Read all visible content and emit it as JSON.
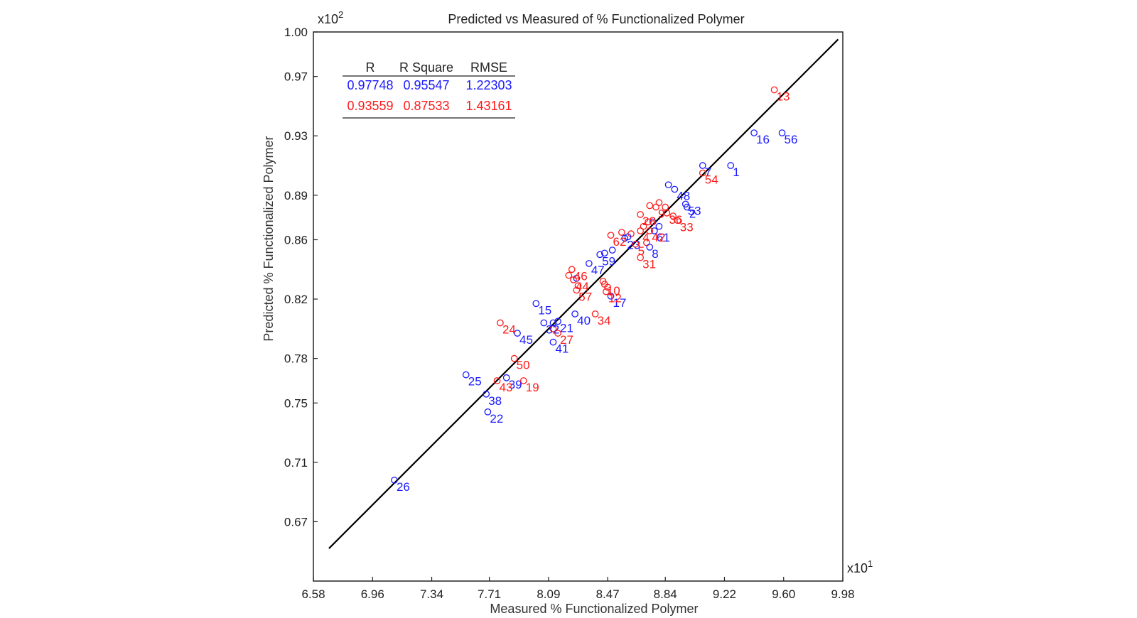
{
  "chart_data": {
    "type": "scatter",
    "title": "Predicted vs Measured of % Functionalized Polymer",
    "xlabel": "Measured % Functionalized Polymer",
    "ylabel": "Predicted % Functionalized Polymer",
    "x_multiplier": "x10",
    "x_multiplier_exp": "1",
    "y_multiplier": "x10",
    "y_multiplier_exp": "2",
    "xlim": [
      6.58,
      9.98
    ],
    "ylim": [
      0.63,
      1.0
    ],
    "x_ticks": [
      "6.58",
      "6.96",
      "7.34",
      "7.71",
      "8.09",
      "8.47",
      "8.84",
      "9.22",
      "9.60",
      "9.98"
    ],
    "y_ticks": [
      "1.00",
      "0.97",
      "0.93",
      "0.89",
      "0.86",
      "0.82",
      "0.78",
      "0.75",
      "0.71",
      "0.67"
    ],
    "grid": false,
    "fit_line": {
      "x": [
        6.68,
        9.95
      ],
      "y": [
        0.652,
        0.995
      ]
    },
    "stats_table": {
      "headers": [
        "R",
        "R Square",
        "RMSE"
      ],
      "rows": [
        {
          "series": "blue",
          "values": [
            "0.97748",
            "0.95547",
            "1.22303"
          ]
        },
        {
          "series": "red",
          "values": [
            "0.93559",
            "0.87533",
            "1.43161"
          ]
        }
      ]
    },
    "series": [
      {
        "color": "#1a1aff",
        "points": [
          {
            "label": "1",
            "x": 9.26,
            "y": 0.91
          },
          {
            "label": "2",
            "x": 8.98,
            "y": 0.882
          },
          {
            "label": "7",
            "x": 9.08,
            "y": 0.91
          },
          {
            "label": "8",
            "x": 8.74,
            "y": 0.855
          },
          {
            "label": "15",
            "x": 8.01,
            "y": 0.817
          },
          {
            "label": "16",
            "x": 9.41,
            "y": 0.932
          },
          {
            "label": "17",
            "x": 8.49,
            "y": 0.822
          },
          {
            "label": "21",
            "x": 8.15,
            "y": 0.805
          },
          {
            "label": "22",
            "x": 7.7,
            "y": 0.744
          },
          {
            "label": "23",
            "x": 8.58,
            "y": 0.861
          },
          {
            "label": "25",
            "x": 7.56,
            "y": 0.769
          },
          {
            "label": "26",
            "x": 7.1,
            "y": 0.698
          },
          {
            "label": "32",
            "x": 8.06,
            "y": 0.804
          },
          {
            "label": "38",
            "x": 7.69,
            "y": 0.756
          },
          {
            "label": "39",
            "x": 7.82,
            "y": 0.767
          },
          {
            "label": "40",
            "x": 8.26,
            "y": 0.81
          },
          {
            "label": "41",
            "x": 8.12,
            "y": 0.791
          },
          {
            "label": "45",
            "x": 7.89,
            "y": 0.797
          },
          {
            "label": "47",
            "x": 8.35,
            "y": 0.844
          },
          {
            "label": "48",
            "x": 8.9,
            "y": 0.894
          },
          {
            "label": "53",
            "x": 8.97,
            "y": 0.884
          },
          {
            "label": "56",
            "x": 9.59,
            "y": 0.932
          },
          {
            "label": "59",
            "x": 8.42,
            "y": 0.85
          },
          {
            "label": "61",
            "x": 8.77,
            "y": 0.866
          }
        ]
      },
      {
        "color": "#ff1a1a",
        "points": [
          {
            "label": "13",
            "x": 9.54,
            "y": 0.961
          },
          {
            "label": "54",
            "x": 9.08,
            "y": 0.905
          },
          {
            "label": "31",
            "x": 8.68,
            "y": 0.848
          },
          {
            "label": "12",
            "x": 8.46,
            "y": 0.825
          },
          {
            "label": "10",
            "x": 8.45,
            "y": 0.83
          },
          {
            "label": "34",
            "x": 8.39,
            "y": 0.81
          },
          {
            "label": "24",
            "x": 7.78,
            "y": 0.804
          },
          {
            "label": "27",
            "x": 8.15,
            "y": 0.797
          },
          {
            "label": "50",
            "x": 7.87,
            "y": 0.78
          },
          {
            "label": "43",
            "x": 7.76,
            "y": 0.765
          },
          {
            "label": "19",
            "x": 7.93,
            "y": 0.765
          },
          {
            "label": "57",
            "x": 8.27,
            "y": 0.826
          },
          {
            "label": "46",
            "x": 8.24,
            "y": 0.84
          },
          {
            "label": "44",
            "x": 8.25,
            "y": 0.833
          },
          {
            "label": "62",
            "x": 8.49,
            "y": 0.863
          },
          {
            "label": "33",
            "x": 8.92,
            "y": 0.873
          },
          {
            "label": "42",
            "x": 8.74,
            "y": 0.866
          },
          {
            "label": "4",
            "x": 8.68,
            "y": 0.866
          },
          {
            "label": "5",
            "x": 8.65,
            "y": 0.857
          },
          {
            "label": "9",
            "x": 8.78,
            "y": 0.882
          },
          {
            "label": "28",
            "x": 8.68,
            "y": 0.877
          },
          {
            "label": "36",
            "x": 8.85,
            "y": 0.878
          }
        ]
      }
    ],
    "extra_markers": [
      {
        "color": "#ff1a1a",
        "x": 8.44,
        "y": 0.832
      },
      {
        "color": "#ff1a1a",
        "x": 8.47,
        "y": 0.828
      },
      {
        "color": "#ff1a1a",
        "x": 8.22,
        "y": 0.836
      },
      {
        "color": "#ff1a1a",
        "x": 8.28,
        "y": 0.829
      },
      {
        "color": "#ff1a1a",
        "x": 8.56,
        "y": 0.865
      },
      {
        "color": "#ff1a1a",
        "x": 8.62,
        "y": 0.864
      },
      {
        "color": "#ff1a1a",
        "x": 8.7,
        "y": 0.869
      },
      {
        "color": "#ff1a1a",
        "x": 8.74,
        "y": 0.883
      },
      {
        "color": "#ff1a1a",
        "x": 8.8,
        "y": 0.885
      },
      {
        "color": "#ff1a1a",
        "x": 8.84,
        "y": 0.882
      },
      {
        "color": "#ff1a1a",
        "x": 8.73,
        "y": 0.872
      },
      {
        "color": "#ff1a1a",
        "x": 8.89,
        "y": 0.876
      },
      {
        "color": "#ff1a1a",
        "x": 8.72,
        "y": 0.858
      },
      {
        "color": "#ff1a1a",
        "x": 8.12,
        "y": 0.8
      },
      {
        "color": "#1a1aff",
        "x": 8.76,
        "y": 0.872
      },
      {
        "color": "#1a1aff",
        "x": 8.8,
        "y": 0.869
      },
      {
        "color": "#1a1aff",
        "x": 8.5,
        "y": 0.853
      },
      {
        "color": "#1a1aff",
        "x": 8.45,
        "y": 0.851
      },
      {
        "color": "#1a1aff",
        "x": 8.27,
        "y": 0.834
      },
      {
        "color": "#1a1aff",
        "x": 8.86,
        "y": 0.897
      },
      {
        "color": "#1a1aff",
        "x": 8.12,
        "y": 0.804
      },
      {
        "color": "#1a1aff",
        "x": 8.6,
        "y": 0.862
      }
    ]
  }
}
